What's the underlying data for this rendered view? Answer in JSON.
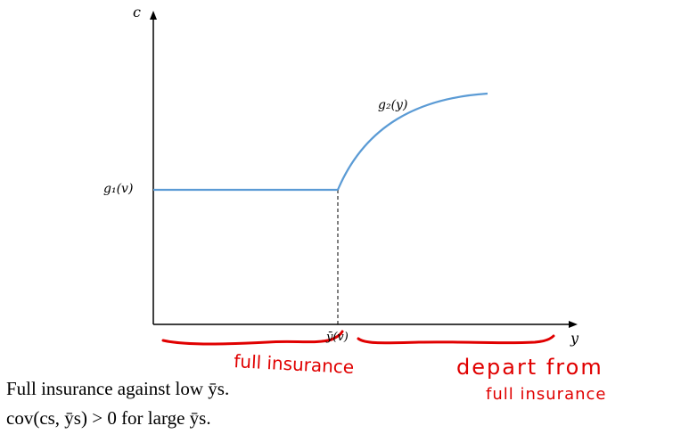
{
  "diagram": {
    "y_axis_label": "c",
    "x_axis_label": "y",
    "g1_label": "g₁(v)",
    "g2_label": "g₂(y)",
    "ybar_label": "ȳ(v)",
    "annotation_left": "full insurance",
    "annotation_right_line1": "depart from",
    "annotation_right_line2": "full insurance",
    "colors": {
      "curve": "#5b9bd5",
      "axis": "#000000",
      "ink": "#e00000"
    }
  },
  "captions": {
    "line1": "Full insurance against low ȳs.",
    "line2": "cov(cs, ȳs) > 0 for large ȳs."
  }
}
